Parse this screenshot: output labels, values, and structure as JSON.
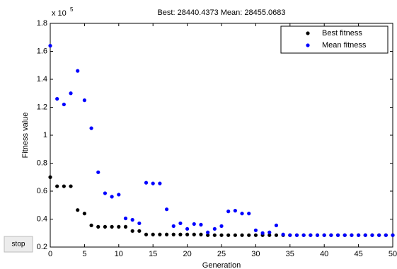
{
  "chart_data": {
    "type": "scatter",
    "title": "Best: 28440.4373 Mean: 28455.0683",
    "xlabel": "Generation",
    "ylabel": "Fitness value",
    "y_multiplier": "x 10",
    "y_exponent": "5",
    "button": "stop",
    "x": [
      0,
      1,
      2,
      3,
      4,
      5,
      6,
      7,
      8,
      9,
      10,
      11,
      12,
      13,
      14,
      15,
      16,
      17,
      18,
      19,
      20,
      21,
      22,
      23,
      24,
      25,
      26,
      27,
      28,
      29,
      30,
      31,
      32,
      33,
      34,
      35,
      36,
      37,
      38,
      39,
      40,
      41,
      42,
      43,
      44,
      45,
      46,
      47,
      48,
      49,
      50
    ],
    "series": [
      {
        "name": "Best fitness",
        "color": "#000000",
        "values": [
          0.7,
          0.635,
          0.635,
          0.635,
          0.465,
          0.44,
          0.355,
          0.345,
          0.345,
          0.345,
          0.345,
          0.345,
          0.315,
          0.315,
          0.29,
          0.29,
          0.29,
          0.29,
          0.29,
          0.29,
          0.29,
          0.29,
          0.29,
          0.285,
          0.285,
          0.285,
          0.285,
          0.285,
          0.285,
          0.285,
          0.285,
          0.285,
          0.285,
          0.285,
          0.285,
          0.285,
          0.285,
          0.285,
          0.285,
          0.285,
          0.285,
          0.285,
          0.285,
          0.285,
          0.285,
          0.285,
          0.285,
          0.285,
          0.285,
          0.285,
          0.285
        ]
      },
      {
        "name": "Mean fitness",
        "color": "#0000ff",
        "values": [
          1.64,
          1.26,
          1.22,
          1.3,
          1.46,
          1.25,
          1.05,
          0.735,
          0.585,
          0.56,
          0.575,
          0.405,
          0.395,
          0.37,
          0.66,
          0.655,
          0.655,
          0.47,
          0.35,
          0.37,
          0.33,
          0.365,
          0.36,
          0.305,
          0.33,
          0.35,
          0.455,
          0.46,
          0.44,
          0.44,
          0.32,
          0.3,
          0.305,
          0.355,
          0.29,
          0.285,
          0.285,
          0.285,
          0.285,
          0.285,
          0.285,
          0.285,
          0.285,
          0.285,
          0.285,
          0.285,
          0.285,
          0.285,
          0.285,
          0.285,
          0.285
        ]
      }
    ],
    "xlim": [
      0,
      50
    ],
    "xticks": [
      0,
      5,
      10,
      15,
      20,
      25,
      30,
      35,
      40,
      45,
      50
    ],
    "ylim": [
      0.2,
      1.8
    ],
    "yticks": [
      0.2,
      0.4,
      0.6,
      0.8,
      1,
      1.2,
      1.4,
      1.6,
      1.8
    ],
    "legend": "upper right"
  }
}
